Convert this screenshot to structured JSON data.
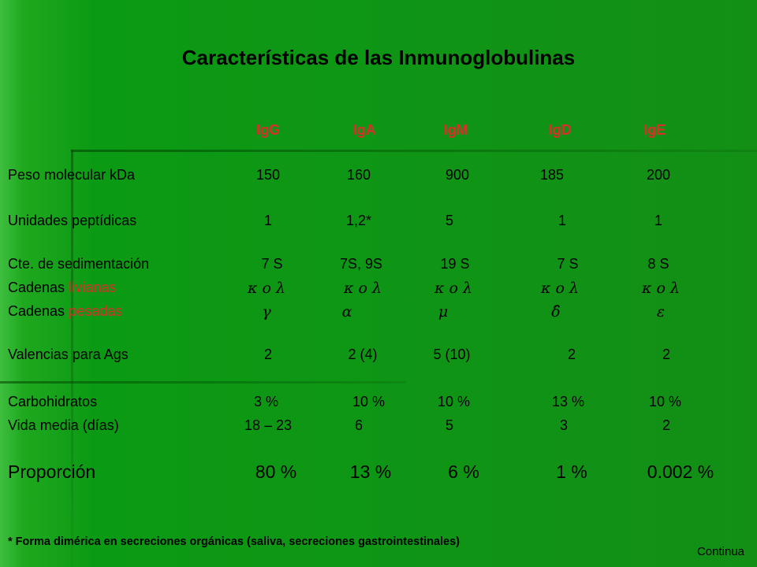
{
  "title": "Características de las Inmunoglobulinas",
  "headers": [
    "IgG",
    "IgA",
    "IgM",
    "IgD",
    "IgE"
  ],
  "rows": {
    "peso": {
      "label": "Peso molecular kDa",
      "values": [
        "150",
        "160",
        "900",
        "185",
        "200"
      ]
    },
    "unidades": {
      "label": "Unidades peptídicas",
      "values": [
        "1",
        "1,2*",
        "5",
        "1",
        "1"
      ]
    },
    "sedimentacion": {
      "label": "Cte. de sedimentación",
      "values": [
        "7 S",
        "7S, 9S",
        "19 S",
        "7 S",
        "8 S"
      ]
    },
    "livianas": {
      "label_prefix": "Cadenas",
      "label_highlight": "livianas",
      "values": [
        "κ o λ",
        "κ o λ",
        "κ o λ",
        "κ o λ",
        "κ o λ"
      ]
    },
    "pesadas": {
      "label_prefix": "Cadenas",
      "label_highlight": "pesadas",
      "values": [
        "γ",
        "α",
        "μ",
        "δ̂",
        "ε"
      ]
    },
    "valencias": {
      "label": "Valencias para Ags",
      "values": [
        "2",
        "2 (4)",
        "5 (10)",
        "2",
        "2"
      ]
    },
    "carbohidratos": {
      "label": "Carbohidratos",
      "values": [
        "3 %",
        "10 %",
        "10 %",
        "13 %",
        "10 %"
      ]
    },
    "vida": {
      "label": "Vida media (días)",
      "values": [
        "18 – 23",
        "6",
        "5",
        "3",
        "2"
      ]
    },
    "proporcion": {
      "label": "Proporción",
      "values": [
        "80 %",
        "13 %",
        "6 %",
        "1 %",
        "0.002 %"
      ]
    }
  },
  "footnote": "* Forma dimérica en secreciones orgánicas (saliva, secreciones gastrointestinales)",
  "continue_label": "Continua",
  "colors": {
    "background": "#138f16",
    "highlight": "#e02b2b"
  }
}
